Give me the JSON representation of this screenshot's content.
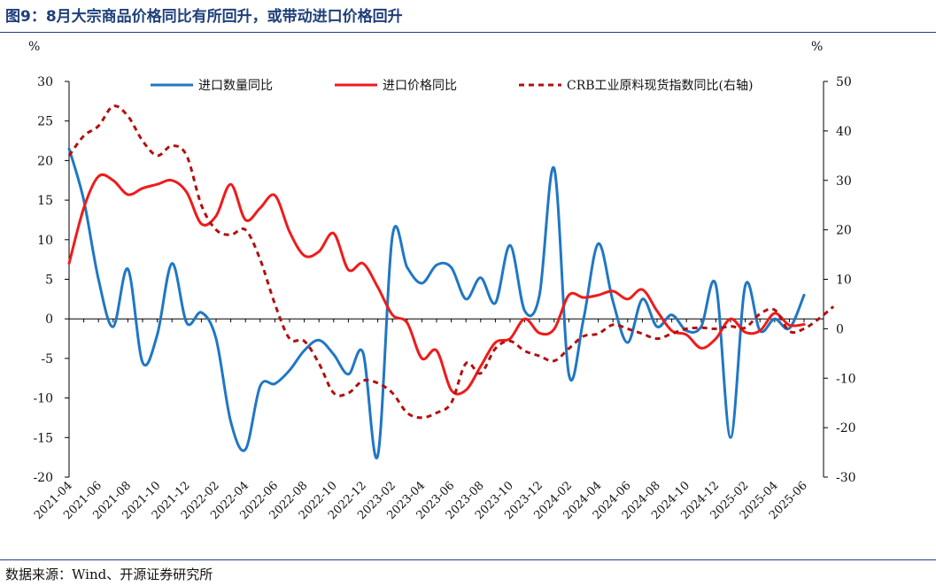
{
  "header": {
    "title": "图9：8月大宗商品价格同比有所回升，或带动进口价格回升"
  },
  "footer": {
    "source": "数据来源：Wind、开源证券研究所"
  },
  "chart_data": {
    "type": "line",
    "y_left": {
      "unit": "%",
      "min": -20,
      "max": 30,
      "ticks": [
        30,
        25,
        20,
        15,
        10,
        5,
        0,
        -5,
        -10,
        -15,
        -20
      ]
    },
    "y_right": {
      "unit": "%",
      "min": -30,
      "max": 50,
      "ticks": [
        50,
        40,
        30,
        20,
        10,
        0,
        -10,
        -20,
        -30
      ]
    },
    "x_start": "2021-04",
    "x_tick_labels": [
      "2021-04",
      "2021-06",
      "2021-08",
      "2021-10",
      "2021-12",
      "2022-02",
      "2022-04",
      "2022-06",
      "2022-08",
      "2022-10",
      "2022-12",
      "2023-02",
      "2023-04",
      "2023-06",
      "2023-08",
      "2023-10",
      "2023-12",
      "2024-02",
      "2024-04",
      "2024-06",
      "2024-08",
      "2024-10",
      "2024-12",
      "2025-02",
      "2025-04",
      "2025-06"
    ],
    "x": [
      "2021-04",
      "2021-05",
      "2021-06",
      "2021-07",
      "2021-08",
      "2021-09",
      "2021-10",
      "2021-11",
      "2021-12",
      "2022-01",
      "2022-02",
      "2022-03",
      "2022-04",
      "2022-05",
      "2022-06",
      "2022-07",
      "2022-08",
      "2022-09",
      "2022-10",
      "2022-11",
      "2022-12",
      "2023-01",
      "2023-02",
      "2023-03",
      "2023-04",
      "2023-05",
      "2023-06",
      "2023-07",
      "2023-08",
      "2023-09",
      "2023-10",
      "2023-11",
      "2023-12",
      "2024-01",
      "2024-02",
      "2024-03",
      "2024-04",
      "2024-05",
      "2024-06",
      "2024-07",
      "2024-08",
      "2024-09",
      "2024-10",
      "2024-11",
      "2024-12",
      "2025-01",
      "2025-02",
      "2025-03",
      "2025-04",
      "2025-05",
      "2025-06",
      "2025-07",
      "2025-08"
    ],
    "legend_position": "top",
    "series": [
      {
        "name": "进口数量同比",
        "axis": "left",
        "color": "#1f77c4",
        "dash": "solid",
        "values": [
          21.5,
          15.0,
          5.0,
          -1.0,
          6.3,
          -5.5,
          -2.0,
          7.0,
          -0.5,
          0.8,
          -2.5,
          -13.0,
          -16.5,
          -8.5,
          -8.2,
          -6.5,
          -4.0,
          -2.7,
          -4.5,
          -7.0,
          -4.3,
          -17.3,
          10.5,
          6.5,
          4.5,
          6.8,
          6.5,
          2.5,
          5.2,
          2.0,
          9.3,
          1.0,
          3.0,
          19.0,
          -7.0,
          0.0,
          9.5,
          2.2,
          -3.0,
          2.5,
          -1.0,
          0.5,
          -1.5,
          -1.0,
          4.3,
          -15.0,
          4.2,
          -1.5,
          0.0,
          -1.2,
          3.0,
          null,
          null
        ]
      },
      {
        "name": "进口价格同比",
        "axis": "left",
        "color": "#ef1b1b",
        "dash": "solid",
        "values": [
          7.0,
          14.0,
          18.0,
          17.5,
          15.7,
          16.5,
          17.0,
          17.5,
          16.0,
          12.0,
          13.0,
          17.0,
          12.5,
          14.0,
          15.6,
          11.0,
          8.0,
          8.5,
          10.8,
          6.2,
          7.0,
          4.0,
          0.5,
          -0.5,
          -5.0,
          -4.0,
          -9.0,
          -9.0,
          -6.0,
          -3.0,
          -2.5,
          0.0,
          -1.8,
          -1.3,
          3.0,
          2.7,
          3.0,
          3.5,
          2.5,
          3.7,
          1.0,
          -1.5,
          -2.0,
          -3.7,
          -2.5,
          0.0,
          -1.7,
          -1.5,
          0.7,
          -0.8,
          -0.7,
          null,
          null
        ]
      },
      {
        "name": "CRB工业原料现货指数同比(右轴)",
        "axis": "right",
        "color": "#b21010",
        "dash": "dashed",
        "values": [
          35.0,
          39.0,
          41.0,
          45.0,
          43.0,
          38.0,
          35.0,
          37.0,
          35.0,
          25.0,
          20.0,
          19.0,
          20.0,
          14.0,
          5.0,
          -2.0,
          -2.5,
          -7.0,
          -13.0,
          -13.0,
          -10.5,
          -11.0,
          -13.0,
          -17.0,
          -18.0,
          -17.0,
          -15.0,
          -7.0,
          -9.0,
          -4.0,
          -2.5,
          -4.5,
          -5.5,
          -6.5,
          -4.0,
          -1.5,
          -1.0,
          0.8,
          0.0,
          -1.0,
          -2.0,
          -1.0,
          0.0,
          0.2,
          0.0,
          0.5,
          0.2,
          3.0,
          3.8,
          -0.5,
          0.0,
          2.0,
          4.5
        ]
      }
    ]
  }
}
